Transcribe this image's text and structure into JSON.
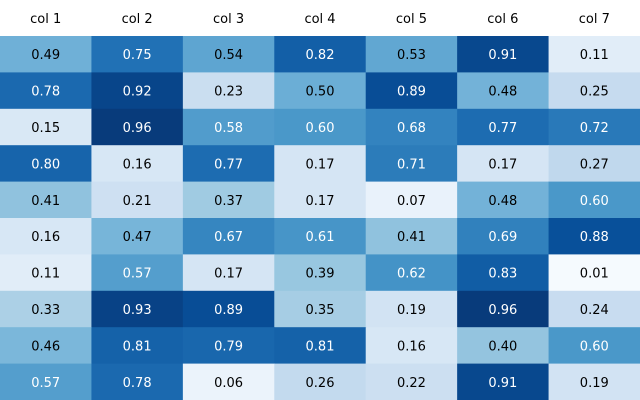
{
  "chart_data": {
    "type": "heatmap",
    "columns": [
      "col 1",
      "col 2",
      "col 3",
      "col 4",
      "col 5",
      "col 6",
      "col 7"
    ],
    "rows": [
      [
        "0.49",
        "0.75",
        "0.54",
        "0.82",
        "0.53",
        "0.91",
        "0.11"
      ],
      [
        "0.78",
        "0.92",
        "0.23",
        "0.50",
        "0.89",
        "0.48",
        "0.25"
      ],
      [
        "0.15",
        "0.96",
        "0.58",
        "0.60",
        "0.68",
        "0.77",
        "0.72"
      ],
      [
        "0.80",
        "0.16",
        "0.77",
        "0.17",
        "0.71",
        "0.17",
        "0.27"
      ],
      [
        "0.41",
        "0.21",
        "0.37",
        "0.17",
        "0.07",
        "0.48",
        "0.60"
      ],
      [
        "0.16",
        "0.47",
        "0.67",
        "0.61",
        "0.41",
        "0.69",
        "0.88"
      ],
      [
        "0.11",
        "0.57",
        "0.17",
        "0.39",
        "0.62",
        "0.83",
        "0.01"
      ],
      [
        "0.33",
        "0.93",
        "0.89",
        "0.35",
        "0.19",
        "0.96",
        "0.24"
      ],
      [
        "0.46",
        "0.81",
        "0.79",
        "0.81",
        "0.16",
        "0.40",
        "0.60"
      ],
      [
        "0.57",
        "0.78",
        "0.06",
        "0.26",
        "0.22",
        "0.91",
        "0.19"
      ]
    ],
    "colormap": "Blues",
    "value_range": [
      0,
      1
    ],
    "grid": false,
    "legend": "none"
  }
}
